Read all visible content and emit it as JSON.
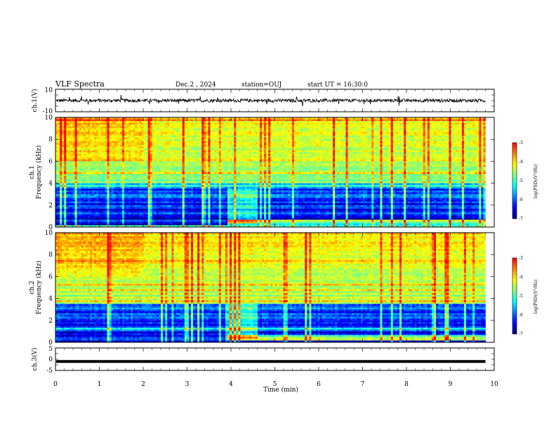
{
  "header": {
    "title": "VLF Spectra",
    "date": "Dec.2 , 2024",
    "station": "station=OUJ",
    "start_ut": "start UT = 16:30:0"
  },
  "chart_data": [
    {
      "type": "line",
      "panel": "ch1-waveform",
      "ylabel": "ch.1(V)",
      "ylim": [
        -10,
        10
      ],
      "yticks": [
        "10",
        "-10"
      ],
      "xlim": [
        0,
        10
      ],
      "description_values": {
        "baseline": 0,
        "noise_amplitude": 1.5,
        "max_spike": 5
      }
    },
    {
      "type": "heatmap",
      "panel": "ch1-spectrogram",
      "ylabel": "ch.1\nFrequency (kHz)",
      "ylabel_line1": "ch.1",
      "ylabel_line2": "Frequency (kHz)",
      "ylim": [
        0,
        10
      ],
      "yticks": [
        "0",
        "2",
        "4",
        "6",
        "8",
        "10"
      ],
      "xlim": [
        0,
        10
      ],
      "data_end_min": 9.8,
      "colorbar": {
        "label": "log(PSD)(V²/Hz)",
        "range": [
          -7,
          -3
        ],
        "ticks": [
          "-3",
          "-4",
          "-5",
          "-6",
          "-7"
        ]
      },
      "features": {
        "high_power_above_khz": 4,
        "event_start_min": 3.9,
        "event_end_min": 4.6
      }
    },
    {
      "type": "heatmap",
      "panel": "ch2-spectrogram",
      "ylabel": "ch.2\nFrequency (kHz)",
      "ylabel_line1": "ch.2",
      "ylabel_line2": "Frequency (kHz)",
      "ylim": [
        0,
        10
      ],
      "yticks": [
        "0",
        "2",
        "4",
        "6",
        "8",
        "10"
      ],
      "xlim": [
        0,
        10
      ],
      "data_end_min": 9.8,
      "colorbar": {
        "label": "log(PSD)(V²/Hz)",
        "range": [
          -7,
          -3
        ],
        "ticks": [
          "-3",
          "-4",
          "-5",
          "-6",
          "-7"
        ]
      },
      "features": {
        "high_power_above_khz": 3.5,
        "event_start_min": 3.9,
        "event_end_min": 4.6
      }
    },
    {
      "type": "line",
      "panel": "ch3-waveform",
      "ylabel": "ch.3(V)",
      "ylim": [
        -5,
        5
      ],
      "yticks": [
        "5",
        "0",
        "-5"
      ],
      "xlim": [
        0,
        10
      ],
      "description_values": {
        "constant_level": -1
      }
    }
  ],
  "x_axis": {
    "label": "Time (min)",
    "ticks": [
      "0",
      "1",
      "2",
      "3",
      "4",
      "5",
      "6",
      "7",
      "8",
      "9",
      "10"
    ]
  },
  "colors": {
    "frame": "#000000",
    "colormap": [
      "#00007f",
      "#0000ff",
      "#007fff",
      "#00ffff",
      "#7fff7f",
      "#ffff00",
      "#ff7f00",
      "#ff0000"
    ]
  }
}
